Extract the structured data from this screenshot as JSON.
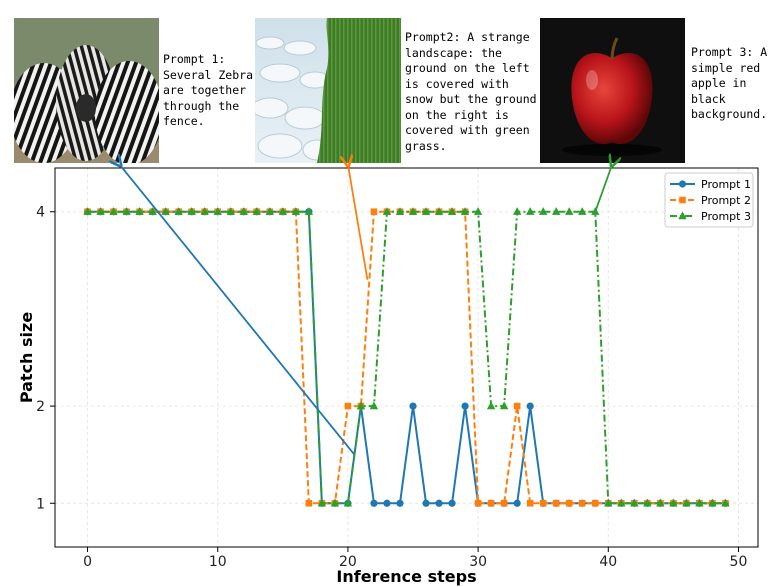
{
  "prompts": [
    {
      "label": "Prompt 1: Several Zebra are together through the fence.",
      "image": "zebra-herd-photo"
    },
    {
      "label": "Prompt2: A strange landscape: the ground on the left is covered with snow but the ground on the right is covered with green grass.",
      "image": "snow-and-grass-landscape"
    },
    {
      "label": "Prompt 3: A simple red apple in black background.",
      "image": "red-apple-photo"
    }
  ],
  "colors": {
    "prompt1": "#1f77b4",
    "prompt2": "#ff7f0e",
    "prompt3": "#2ca02c"
  },
  "chart_data": {
    "type": "line",
    "xlabel": "Inference steps",
    "ylabel": "Patch size",
    "xlim": [
      -2.5,
      51.5
    ],
    "ylim": [
      0.55,
      4.45
    ],
    "xticks": [
      0,
      10,
      20,
      30,
      40,
      50
    ],
    "yticks": [
      1,
      2,
      4
    ],
    "grid": true,
    "legend_position": "top-right",
    "x": [
      0,
      1,
      2,
      3,
      4,
      5,
      6,
      7,
      8,
      9,
      10,
      11,
      12,
      13,
      14,
      15,
      16,
      17,
      18,
      19,
      20,
      21,
      22,
      23,
      24,
      25,
      26,
      27,
      28,
      29,
      30,
      31,
      32,
      33,
      34,
      35,
      36,
      37,
      38,
      39,
      40,
      41,
      42,
      43,
      44,
      45,
      46,
      47,
      48,
      49
    ],
    "series": [
      {
        "name": "Prompt 1",
        "color": "#1f77b4",
        "style": "solid",
        "marker": "circle",
        "values": [
          4,
          4,
          4,
          4,
          4,
          4,
          4,
          4,
          4,
          4,
          4,
          4,
          4,
          4,
          4,
          4,
          4,
          4,
          1,
          1,
          1,
          2,
          1,
          1,
          1,
          2,
          1,
          1,
          1,
          2,
          1,
          1,
          1,
          1,
          2,
          1,
          1,
          1,
          1,
          1,
          1,
          1,
          1,
          1,
          1,
          1,
          1,
          1,
          1,
          1
        ]
      },
      {
        "name": "Prompt 2",
        "color": "#ff7f0e",
        "style": "dashed",
        "marker": "square",
        "values": [
          4,
          4,
          4,
          4,
          4,
          4,
          4,
          4,
          4,
          4,
          4,
          4,
          4,
          4,
          4,
          4,
          4,
          1,
          1,
          1,
          2,
          2,
          4,
          4,
          4,
          4,
          4,
          4,
          4,
          4,
          1,
          1,
          1,
          2,
          1,
          1,
          1,
          1,
          1,
          1,
          1,
          1,
          1,
          1,
          1,
          1,
          1,
          1,
          1,
          1
        ]
      },
      {
        "name": "Prompt 3",
        "color": "#2ca02c",
        "style": "dashdot",
        "marker": "triangle",
        "values": [
          4,
          4,
          4,
          4,
          4,
          4,
          4,
          4,
          4,
          4,
          4,
          4,
          4,
          4,
          4,
          4,
          4,
          4,
          1,
          1,
          1,
          2,
          2,
          4,
          4,
          4,
          4,
          4,
          4,
          4,
          4,
          2,
          2,
          4,
          4,
          4,
          4,
          4,
          4,
          4,
          1,
          1,
          1,
          1,
          1,
          1,
          1,
          1,
          1,
          1
        ]
      }
    ],
    "annotations": [
      {
        "text": "Prompt 1",
        "target_x": 20.5,
        "target_y": 1.5
      },
      {
        "text": "Prompt 2",
        "target_x": 21.5,
        "target_y": 3.3
      },
      {
        "text": "Prompt 3",
        "target_x": 39.0,
        "target_y": 4.0
      }
    ]
  }
}
